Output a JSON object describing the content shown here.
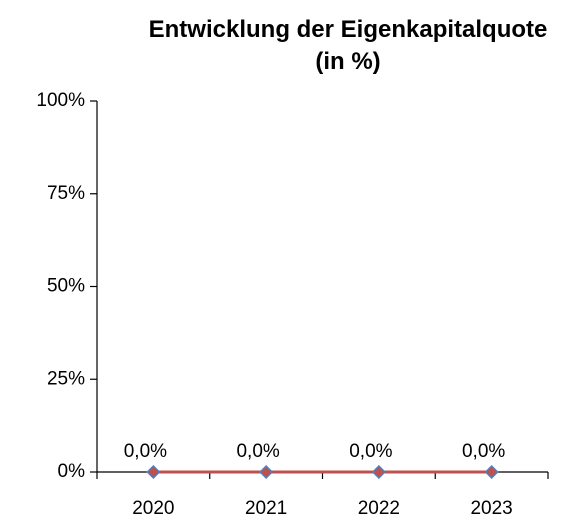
{
  "chart_data": {
    "type": "line",
    "title": "Entwicklung der Eigenkapitalquote\n(in %)",
    "categories": [
      "2020",
      "2021",
      "2022",
      "2023"
    ],
    "series": [
      {
        "name": "Eigenkapitalquote",
        "color": "#c0504d",
        "marker_color": "#4f81bd",
        "values": [
          0,
          0,
          0,
          0
        ],
        "value_labels": [
          "0,0%",
          "0,0%",
          "0,0%",
          "0,0%"
        ]
      }
    ],
    "ylim": [
      0,
      100
    ],
    "yticks": [
      {
        "value": 0,
        "label": "0%"
      },
      {
        "value": 25,
        "label": "25%"
      },
      {
        "value": 50,
        "label": "50%"
      },
      {
        "value": 75,
        "label": "75%"
      },
      {
        "value": 100,
        "label": "100%"
      }
    ],
    "grid": false
  }
}
